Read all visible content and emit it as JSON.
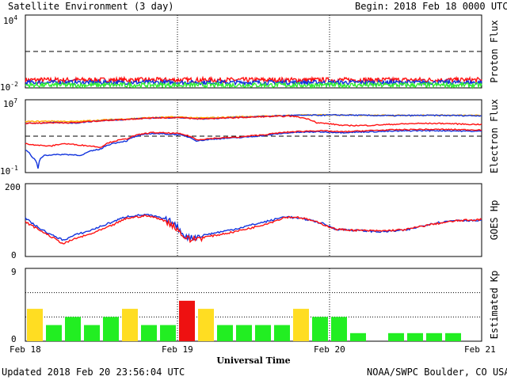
{
  "header": {
    "title": "Satellite Environment (3 day)",
    "begin_label": "Begin:",
    "begin_value": "2018 Feb 18 0000 UTC"
  },
  "footer": {
    "updated": "Updated 2018 Feb 20 23:56:04 UTC",
    "credit": "NOAA/SWPC Boulder, CO USA"
  },
  "colors": {
    "red": "#ff1111",
    "blue": "#1133dd",
    "green": "#33ee33",
    "orange": "#ffaa00",
    "kp_green": "#22ee22",
    "kp_yellow": "#ffdd22",
    "kp_red": "#ee1111"
  },
  "chart_data": [
    {
      "type": "line",
      "panel": "proton",
      "ylabel": "Proton Flux",
      "yscale": "log",
      "ylim": [
        0.01,
        10000
      ],
      "ytick_base": [
        "10",
        "10"
      ],
      "ytick_exp": [
        "4",
        "-2"
      ],
      "threshold": 10,
      "x_range_hours": [
        0,
        72
      ],
      "series": [
        {
          "color": "red",
          "base": 0.045,
          "spread": 0.4
        },
        {
          "color": "blue",
          "base": 0.028,
          "spread": 0.35
        },
        {
          "color": "green",
          "base": 0.017,
          "spread": 0.4
        }
      ]
    },
    {
      "type": "line",
      "panel": "electron",
      "ylabel": "Electron Flux",
      "yscale": "log",
      "ylim": [
        0.1,
        10000000
      ],
      "ytick_base": [
        "10",
        "10"
      ],
      "ytick_exp": [
        "7",
        "-1"
      ],
      "threshold": 1000,
      "x_range_hours": [
        0,
        72
      ],
      "series": [
        {
          "color": "orange",
          "points": [
            [
              0,
              40000
            ],
            [
              4,
              45000
            ],
            [
              8,
              40000
            ],
            [
              12,
              60000
            ],
            [
              16,
              80000
            ],
            [
              20,
              110000
            ],
            [
              24,
              130000
            ],
            [
              27,
              100000
            ],
            [
              30,
              110000
            ],
            [
              34,
              140000
            ],
            [
              38,
              160000
            ],
            [
              42,
              200000
            ],
            [
              46,
              210000
            ],
            [
              50,
              220000
            ],
            [
              54,
              200000
            ],
            [
              58,
              190000
            ],
            [
              62,
              200000
            ],
            [
              66,
              200000
            ],
            [
              70,
              190000
            ],
            [
              72,
              190000
            ]
          ]
        },
        {
          "color": "blue",
          "points": [
            [
              0,
              25000
            ],
            [
              4,
              30000
            ],
            [
              8,
              28000
            ],
            [
              12,
              50000
            ],
            [
              16,
              70000
            ],
            [
              20,
              100000
            ],
            [
              24,
              110000
            ],
            [
              27,
              80000
            ],
            [
              30,
              90000
            ],
            [
              34,
              120000
            ],
            [
              38,
              150000
            ],
            [
              42,
              190000
            ],
            [
              46,
              200000
            ],
            [
              50,
              210000
            ],
            [
              54,
              190000
            ],
            [
              58,
              180000
            ],
            [
              62,
              190000
            ],
            [
              66,
              190000
            ],
            [
              70,
              180000
            ],
            [
              72,
              180000
            ]
          ]
        },
        {
          "color": "red",
          "points": [
            [
              0,
              25000
            ],
            [
              4,
              30000
            ],
            [
              8,
              30000
            ],
            [
              12,
              50000
            ],
            [
              16,
              70000
            ],
            [
              20,
              100000
            ],
            [
              24,
              110000
            ],
            [
              27,
              80000
            ],
            [
              30,
              90000
            ],
            [
              34,
              110000
            ],
            [
              38,
              140000
            ],
            [
              42,
              160000
            ],
            [
              46,
              30000
            ],
            [
              50,
              15000
            ],
            [
              54,
              15000
            ],
            [
              58,
              20000
            ],
            [
              62,
              25000
            ],
            [
              66,
              25000
            ],
            [
              70,
              20000
            ],
            [
              72,
              20000
            ]
          ]
        },
        {
          "color": "blue",
          "points": [
            [
              0,
              30
            ],
            [
              1,
              5
            ],
            [
              2,
              0.3
            ],
            [
              3,
              8
            ],
            [
              6,
              10
            ],
            [
              9,
              8
            ],
            [
              12,
              40
            ],
            [
              16,
              300
            ],
            [
              20,
              2000
            ],
            [
              24,
              1500
            ],
            [
              27,
              300
            ],
            [
              30,
              500
            ],
            [
              34,
              700
            ],
            [
              38,
              1200
            ],
            [
              42,
              2500
            ],
            [
              46,
              3000
            ],
            [
              50,
              2500
            ],
            [
              54,
              3000
            ],
            [
              58,
              3500
            ],
            [
              62,
              4000
            ],
            [
              66,
              4000
            ],
            [
              70,
              3500
            ],
            [
              72,
              3500
            ]
          ]
        },
        {
          "color": "red",
          "points": [
            [
              0,
              150
            ],
            [
              2,
              100
            ],
            [
              4,
              80
            ],
            [
              6,
              150
            ],
            [
              9,
              100
            ],
            [
              12,
              60
            ],
            [
              16,
              500
            ],
            [
              20,
              2500
            ],
            [
              24,
              2000
            ],
            [
              27,
              400
            ],
            [
              30,
              600
            ],
            [
              34,
              800
            ],
            [
              38,
              1500
            ],
            [
              42,
              3000
            ],
            [
              46,
              4000
            ],
            [
              50,
              3000
            ],
            [
              54,
              4000
            ],
            [
              58,
              5000
            ],
            [
              62,
              5500
            ],
            [
              66,
              5500
            ],
            [
              70,
              5000
            ],
            [
              72,
              5000
            ]
          ]
        }
      ]
    },
    {
      "type": "line",
      "panel": "hp",
      "ylabel": "GOES Hp",
      "ylim": [
        0,
        200
      ],
      "yticks": [
        "200",
        "0"
      ],
      "x_range_hours": [
        0,
        72
      ],
      "series": [
        {
          "color": "blue",
          "points": [
            [
              0,
              105
            ],
            [
              2,
              80
            ],
            [
              4,
              60
            ],
            [
              6,
              45
            ],
            [
              8,
              60
            ],
            [
              10,
              70
            ],
            [
              13,
              90
            ],
            [
              16,
              110
            ],
            [
              19,
              115
            ],
            [
              21,
              108
            ],
            [
              23,
              95
            ],
            [
              24,
              80
            ],
            [
              25,
              60
            ],
            [
              26,
              50
            ],
            [
              27,
              55
            ],
            [
              30,
              65
            ],
            [
              33,
              75
            ],
            [
              36,
              88
            ],
            [
              39,
              100
            ],
            [
              41,
              110
            ],
            [
              43,
              105
            ],
            [
              45,
              100
            ],
            [
              47,
              90
            ],
            [
              49,
              75
            ],
            [
              52,
              72
            ],
            [
              56,
              68
            ],
            [
              60,
              72
            ],
            [
              64,
              90
            ],
            [
              68,
              100
            ],
            [
              72,
              98
            ]
          ]
        },
        {
          "color": "red",
          "points": [
            [
              0,
              95
            ],
            [
              2,
              75
            ],
            [
              4,
              55
            ],
            [
              6,
              35
            ],
            [
              8,
              50
            ],
            [
              10,
              60
            ],
            [
              13,
              80
            ],
            [
              16,
              105
            ],
            [
              19,
              112
            ],
            [
              21,
              105
            ],
            [
              23,
              90
            ],
            [
              24,
              75
            ],
            [
              25,
              55
            ],
            [
              26,
              45
            ],
            [
              27,
              50
            ],
            [
              30,
              58
            ],
            [
              33,
              68
            ],
            [
              36,
              80
            ],
            [
              39,
              95
            ],
            [
              41,
              108
            ],
            [
              43,
              108
            ],
            [
              45,
              100
            ],
            [
              47,
              88
            ],
            [
              49,
              75
            ],
            [
              52,
              72
            ],
            [
              56,
              70
            ],
            [
              60,
              74
            ],
            [
              64,
              88
            ],
            [
              68,
              98
            ],
            [
              72,
              102
            ]
          ]
        }
      ]
    },
    {
      "type": "bar",
      "panel": "kp",
      "ylabel": "Estimated Kp",
      "ylim": [
        0,
        9
      ],
      "yticks": [
        "9",
        "0"
      ],
      "bar_hours": 3,
      "values": [
        4,
        2,
        3,
        2,
        3,
        4,
        2,
        2,
        5,
        4,
        2,
        2,
        2,
        2,
        4,
        3,
        3,
        1,
        0,
        1,
        1,
        1,
        1,
        0
      ],
      "x_ticks": [
        "Feb 18",
        "Feb 19",
        "Feb 20",
        "Feb 21"
      ],
      "xlabel": "Universal Time"
    }
  ]
}
